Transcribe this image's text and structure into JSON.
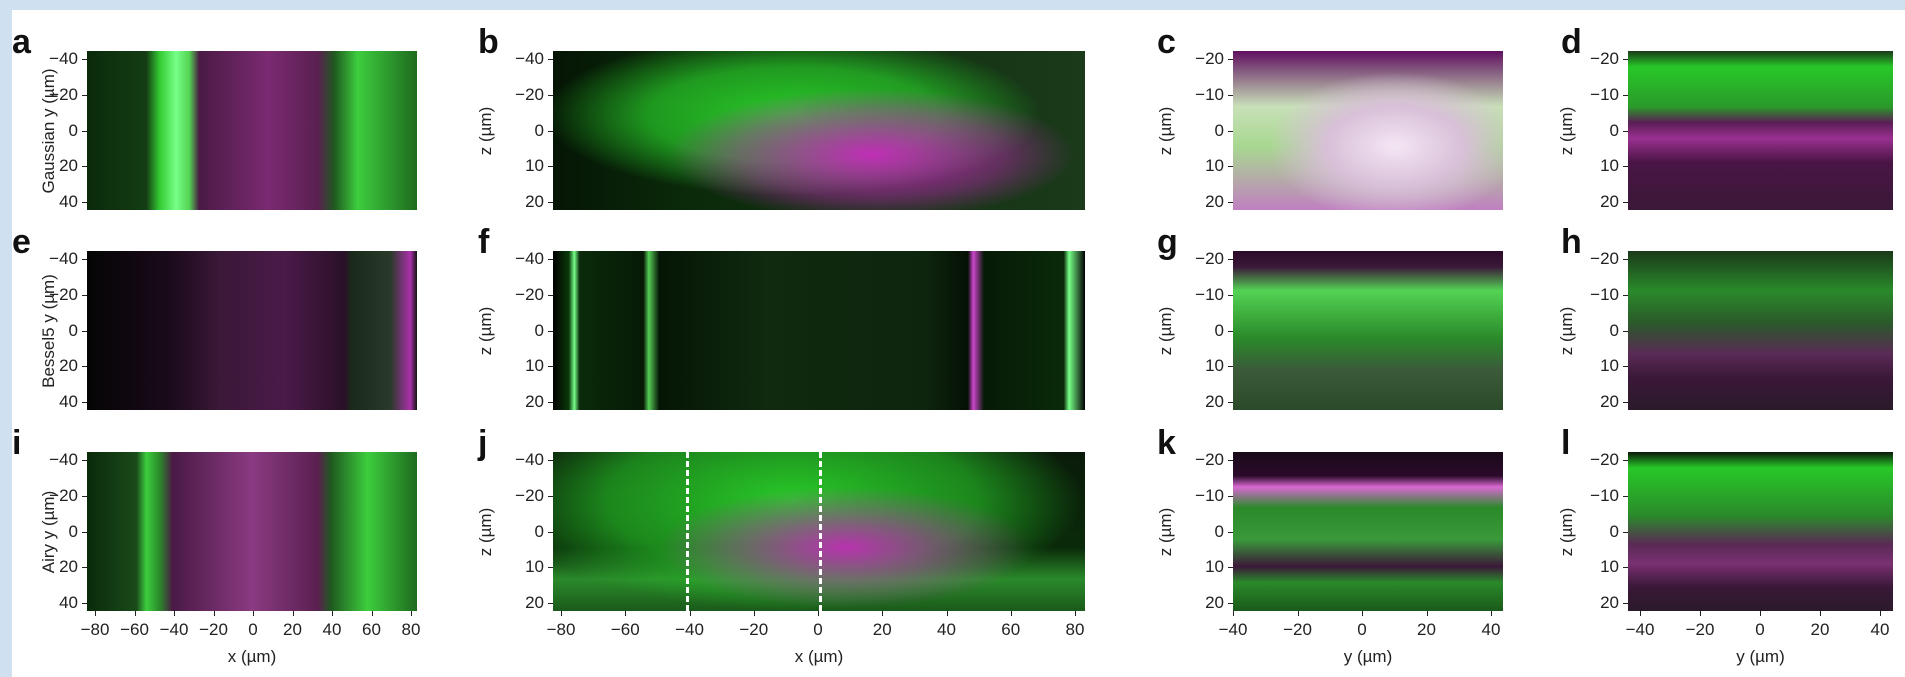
{
  "row_labels": [
    "Gaussian",
    "Bessel5",
    "Airy"
  ],
  "panels": [
    {
      "letter": "a",
      "y_label": "y (µm)",
      "y_ticks": [
        "−40",
        "−20",
        "0",
        "20",
        "40"
      ]
    },
    {
      "letter": "b",
      "y_label": "z (µm)",
      "y_ticks": [
        "−40",
        "−20",
        "0",
        "10",
        "20"
      ]
    },
    {
      "letter": "c",
      "y_label": "z (µm)",
      "y_ticks": [
        "−20",
        "−10",
        "0",
        "10",
        "20"
      ]
    },
    {
      "letter": "d",
      "y_label": "z (µm)",
      "y_ticks": [
        "−20",
        "−10",
        "0",
        "10",
        "20"
      ]
    },
    {
      "letter": "e",
      "y_label": "y (µm)",
      "y_ticks": [
        "−40",
        "−20",
        "0",
        "20",
        "40"
      ]
    },
    {
      "letter": "f",
      "y_label": "z (µm)",
      "y_ticks": [
        "−40",
        "−20",
        "0",
        "10",
        "20"
      ]
    },
    {
      "letter": "g",
      "y_label": "z (µm)",
      "y_ticks": [
        "−20",
        "−10",
        "0",
        "10",
        "20"
      ]
    },
    {
      "letter": "h",
      "y_label": "z (µm)",
      "y_ticks": [
        "−20",
        "−10",
        "0",
        "10",
        "20"
      ]
    },
    {
      "letter": "i",
      "y_label": "y (µm)",
      "y_ticks": [
        "−40",
        "−20",
        "0",
        "20",
        "40"
      ]
    },
    {
      "letter": "j",
      "y_label": "z (µm)",
      "y_ticks": [
        "−40",
        "−20",
        "0",
        "10",
        "20"
      ]
    },
    {
      "letter": "k",
      "y_label": "z (µm)",
      "y_ticks": [
        "−20",
        "−10",
        "0",
        "10",
        "20"
      ]
    },
    {
      "letter": "l",
      "y_label": "z (µm)",
      "y_ticks": [
        "−20",
        "−10",
        "0",
        "10",
        "20"
      ]
    }
  ],
  "x_axes": [
    {
      "label": "x (µm)",
      "ticks": [
        "−80",
        "−60",
        "−40",
        "−20",
        "0",
        "20",
        "40",
        "60",
        "80"
      ]
    },
    {
      "label": "x (µm)",
      "ticks": [
        "−80",
        "−60",
        "−40",
        "−20",
        "0",
        "20",
        "40",
        "60",
        "80"
      ]
    },
    {
      "label": "y (µm)",
      "ticks": [
        "−40",
        "−20",
        "0",
        "20",
        "40"
      ]
    },
    {
      "label": "y (µm)",
      "ticks": [
        "−40",
        "−20",
        "0",
        "20",
        "40"
      ]
    }
  ]
}
